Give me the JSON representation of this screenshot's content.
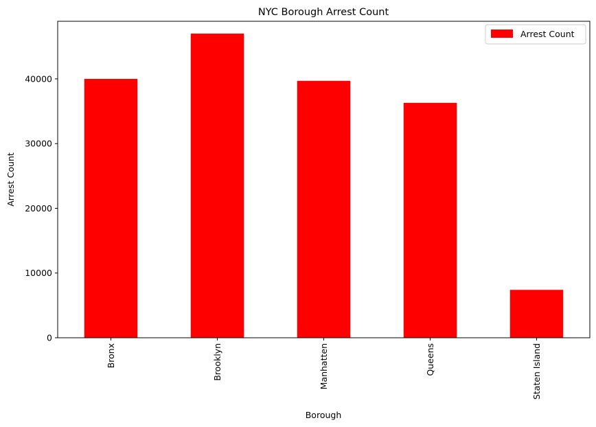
{
  "chart_data": {
    "type": "bar",
    "title": "NYC Borough Arrest Count",
    "xlabel": "Borough",
    "ylabel": "Arrest Count",
    "categories": [
      "Bronx",
      "Brooklyn",
      "Manhatten",
      "Queens",
      "Staten Island"
    ],
    "series": [
      {
        "name": "Arrest Count",
        "color": "#ff0000",
        "values": [
          40000,
          47000,
          39700,
          36300,
          7400
        ]
      }
    ],
    "ylim": [
      0,
      48900
    ],
    "yticks": [
      0,
      10000,
      20000,
      30000,
      40000
    ],
    "grid": false,
    "legend_position": "top-right"
  }
}
